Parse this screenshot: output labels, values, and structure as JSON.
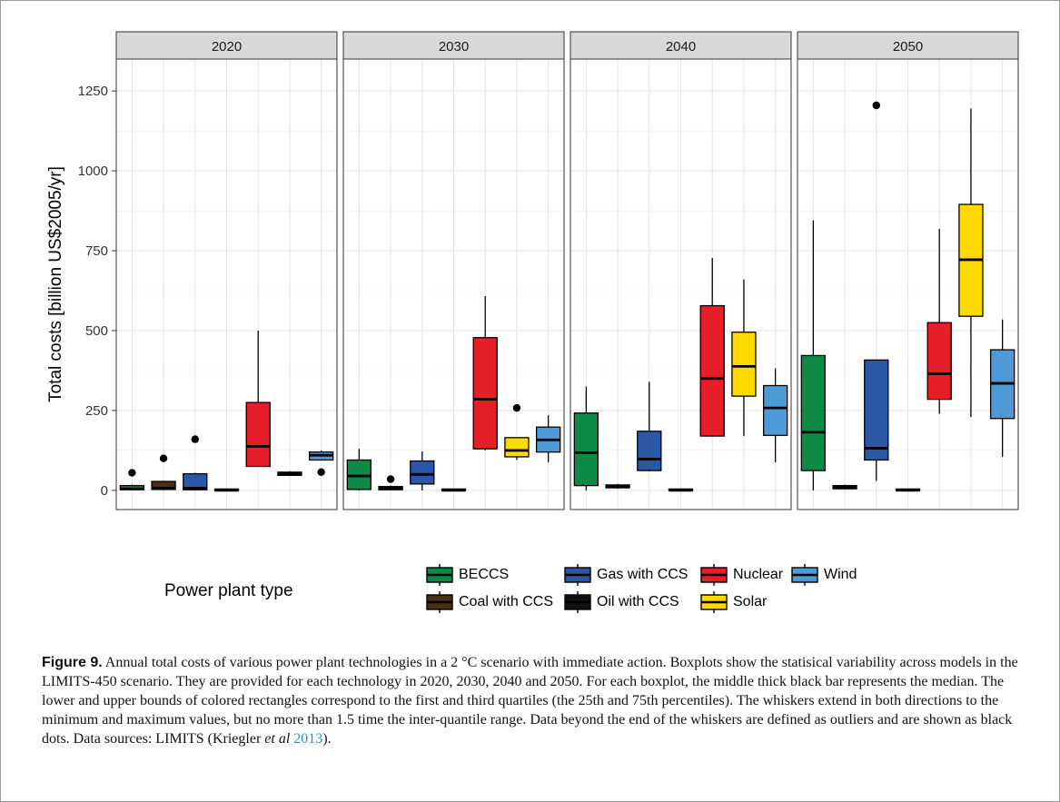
{
  "chart_data": {
    "type": "box",
    "ylabel": "Total costs [billion US$2005/yr]",
    "xlabel": "",
    "ylim": [
      -60,
      1350
    ],
    "yticks": [
      0,
      250,
      500,
      750,
      1000,
      1250
    ],
    "grid": true,
    "legend_position": "bottom",
    "legend_title": "Power plant type",
    "categories": [
      "BECCS",
      "Coal with CCS",
      "Gas with CCS",
      "Oil with CCS",
      "Nuclear",
      "Solar",
      "Wind"
    ],
    "colors": {
      "BECCS": "#0d8a45",
      "Coal with CCS": "#4a2f16",
      "Gas with CCS": "#2a57a6",
      "Oil with CCS": "#111111",
      "Nuclear": "#e61e27",
      "Solar": "#ffd900",
      "Wind": "#4d9ad7"
    },
    "facets": [
      {
        "label": "2020",
        "boxes": [
          {
            "category": "BECCS",
            "min": 0,
            "q1": 2,
            "median": 5,
            "q3": 15,
            "max": 18,
            "outliers": [
              55
            ]
          },
          {
            "category": "Coal with CCS",
            "min": 0,
            "q1": 3,
            "median": 7,
            "q3": 28,
            "max": 30,
            "outliers": [
              100
            ]
          },
          {
            "category": "Gas with CCS",
            "min": 0,
            "q1": 2,
            "median": 7,
            "q3": 52,
            "max": 55,
            "outliers": [
              160
            ]
          },
          {
            "category": "Oil with CCS",
            "min": 0,
            "q1": 0,
            "median": 0,
            "q3": 1,
            "max": 1,
            "outliers": []
          },
          {
            "category": "Nuclear",
            "min": 75,
            "q1": 75,
            "median": 138,
            "q3": 275,
            "max": 500,
            "outliers": []
          },
          {
            "category": "Solar",
            "min": 45,
            "q1": 47,
            "median": 52,
            "q3": 57,
            "max": 60,
            "outliers": []
          },
          {
            "category": "Wind",
            "min": 95,
            "q1": 95,
            "median": 110,
            "q3": 120,
            "max": 125,
            "outliers": [
              57
            ]
          }
        ]
      },
      {
        "label": "2030",
        "boxes": [
          {
            "category": "BECCS",
            "min": 0,
            "q1": 3,
            "median": 45,
            "q3": 95,
            "max": 130,
            "outliers": []
          },
          {
            "category": "Coal with CCS",
            "min": 0,
            "q1": 2,
            "median": 8,
            "q3": 12,
            "max": 15,
            "outliers": [
              35
            ]
          },
          {
            "category": "Gas with CCS",
            "min": 0,
            "q1": 20,
            "median": 50,
            "q3": 92,
            "max": 122,
            "outliers": []
          },
          {
            "category": "Oil with CCS",
            "min": 0,
            "q1": 0,
            "median": 0,
            "q3": 1,
            "max": 1,
            "outliers": []
          },
          {
            "category": "Nuclear",
            "min": 125,
            "q1": 130,
            "median": 285,
            "q3": 478,
            "max": 608,
            "outliers": []
          },
          {
            "category": "Solar",
            "min": 95,
            "q1": 105,
            "median": 125,
            "q3": 165,
            "max": 165,
            "outliers": [
              258
            ]
          },
          {
            "category": "Wind",
            "min": 88,
            "q1": 120,
            "median": 158,
            "q3": 198,
            "max": 235,
            "outliers": []
          }
        ]
      },
      {
        "label": "2040",
        "boxes": [
          {
            "category": "BECCS",
            "min": 0,
            "q1": 15,
            "median": 118,
            "q3": 242,
            "max": 325,
            "outliers": []
          },
          {
            "category": "Coal with CCS",
            "min": 5,
            "q1": 8,
            "median": 12,
            "q3": 17,
            "max": 20,
            "outliers": []
          },
          {
            "category": "Gas with CCS",
            "min": 60,
            "q1": 62,
            "median": 98,
            "q3": 185,
            "max": 340,
            "outliers": []
          },
          {
            "category": "Oil with CCS",
            "min": 0,
            "q1": 0,
            "median": 0,
            "q3": 1,
            "max": 1,
            "outliers": []
          },
          {
            "category": "Nuclear",
            "min": 168,
            "q1": 170,
            "median": 350,
            "q3": 578,
            "max": 727,
            "outliers": []
          },
          {
            "category": "Solar",
            "min": 170,
            "q1": 295,
            "median": 388,
            "q3": 495,
            "max": 660,
            "outliers": []
          },
          {
            "category": "Wind",
            "min": 88,
            "q1": 172,
            "median": 258,
            "q3": 328,
            "max": 382,
            "outliers": []
          }
        ]
      },
      {
        "label": "2050",
        "boxes": [
          {
            "category": "BECCS",
            "min": 0,
            "q1": 62,
            "median": 182,
            "q3": 422,
            "max": 845,
            "outliers": []
          },
          {
            "category": "Coal with CCS",
            "min": 3,
            "q1": 5,
            "median": 10,
            "q3": 15,
            "max": 18,
            "outliers": []
          },
          {
            "category": "Gas with CCS",
            "min": 30,
            "q1": 95,
            "median": 132,
            "q3": 408,
            "max": 408,
            "outliers": [
              1205
            ]
          },
          {
            "category": "Oil with CCS",
            "min": 0,
            "q1": 0,
            "median": 0,
            "q3": 1,
            "max": 1,
            "outliers": []
          },
          {
            "category": "Nuclear",
            "min": 240,
            "q1": 285,
            "median": 365,
            "q3": 525,
            "max": 818,
            "outliers": []
          },
          {
            "category": "Solar",
            "min": 230,
            "q1": 545,
            "median": 722,
            "q3": 895,
            "max": 1195,
            "outliers": []
          },
          {
            "category": "Wind",
            "min": 105,
            "q1": 225,
            "median": 335,
            "q3": 440,
            "max": 535,
            "outliers": []
          }
        ]
      }
    ]
  },
  "legend_items": [
    "BECCS",
    "Coal with CCS",
    "Gas with CCS",
    "Oil with CCS",
    "Nuclear",
    "Solar",
    "Wind"
  ],
  "caption": {
    "label": "Figure 9.",
    "text_before_cite": " Annual total costs of various power plant technologies in a 2 °C scenario with immediate action. Boxplots show the statisical variability across models in the LIMITS-450 scenario. They are provided for each technology in 2020, 2030, 2040 and 2050. For each boxplot, the middle thick black bar represents the median. The lower and upper bounds of colored rectangles correspond to the first and third quartiles (the 25th and 75th percentiles). The whiskers extend in both directions to the minimum and maximum values, but no more than 1.5 time the inter-quantile range. Data beyond the end of the whiskers are defined as outliers and are shown as black dots. Data sources: LIMITS (Kriegler ",
    "cite_etal": "et al",
    "cite_year": "2013",
    "text_after_cite": ")."
  }
}
